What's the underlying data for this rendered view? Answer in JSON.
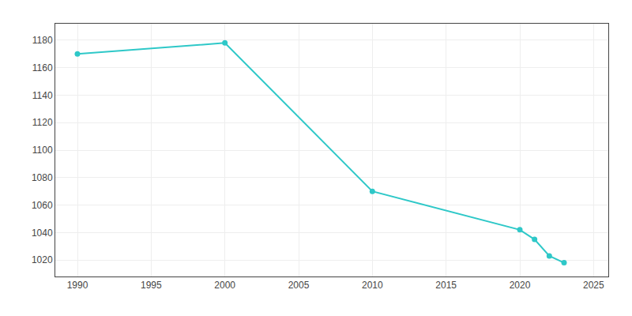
{
  "chart_data": {
    "type": "line",
    "x": [
      1990,
      2000,
      2010,
      2020,
      2021,
      2022,
      2023
    ],
    "values": [
      1170,
      1178,
      1070,
      1042,
      1035,
      1023,
      1018
    ],
    "color": "#2ec8c8",
    "marker": "circle",
    "line_style": "solid",
    "xlim": [
      1988.5,
      2026
    ],
    "ylim": [
      1008,
      1192
    ],
    "xticks": [
      1990,
      1995,
      2000,
      2005,
      2010,
      2015,
      2020,
      2025
    ],
    "yticks": [
      1020,
      1040,
      1060,
      1080,
      1100,
      1120,
      1140,
      1160,
      1180
    ],
    "grid": true
  }
}
